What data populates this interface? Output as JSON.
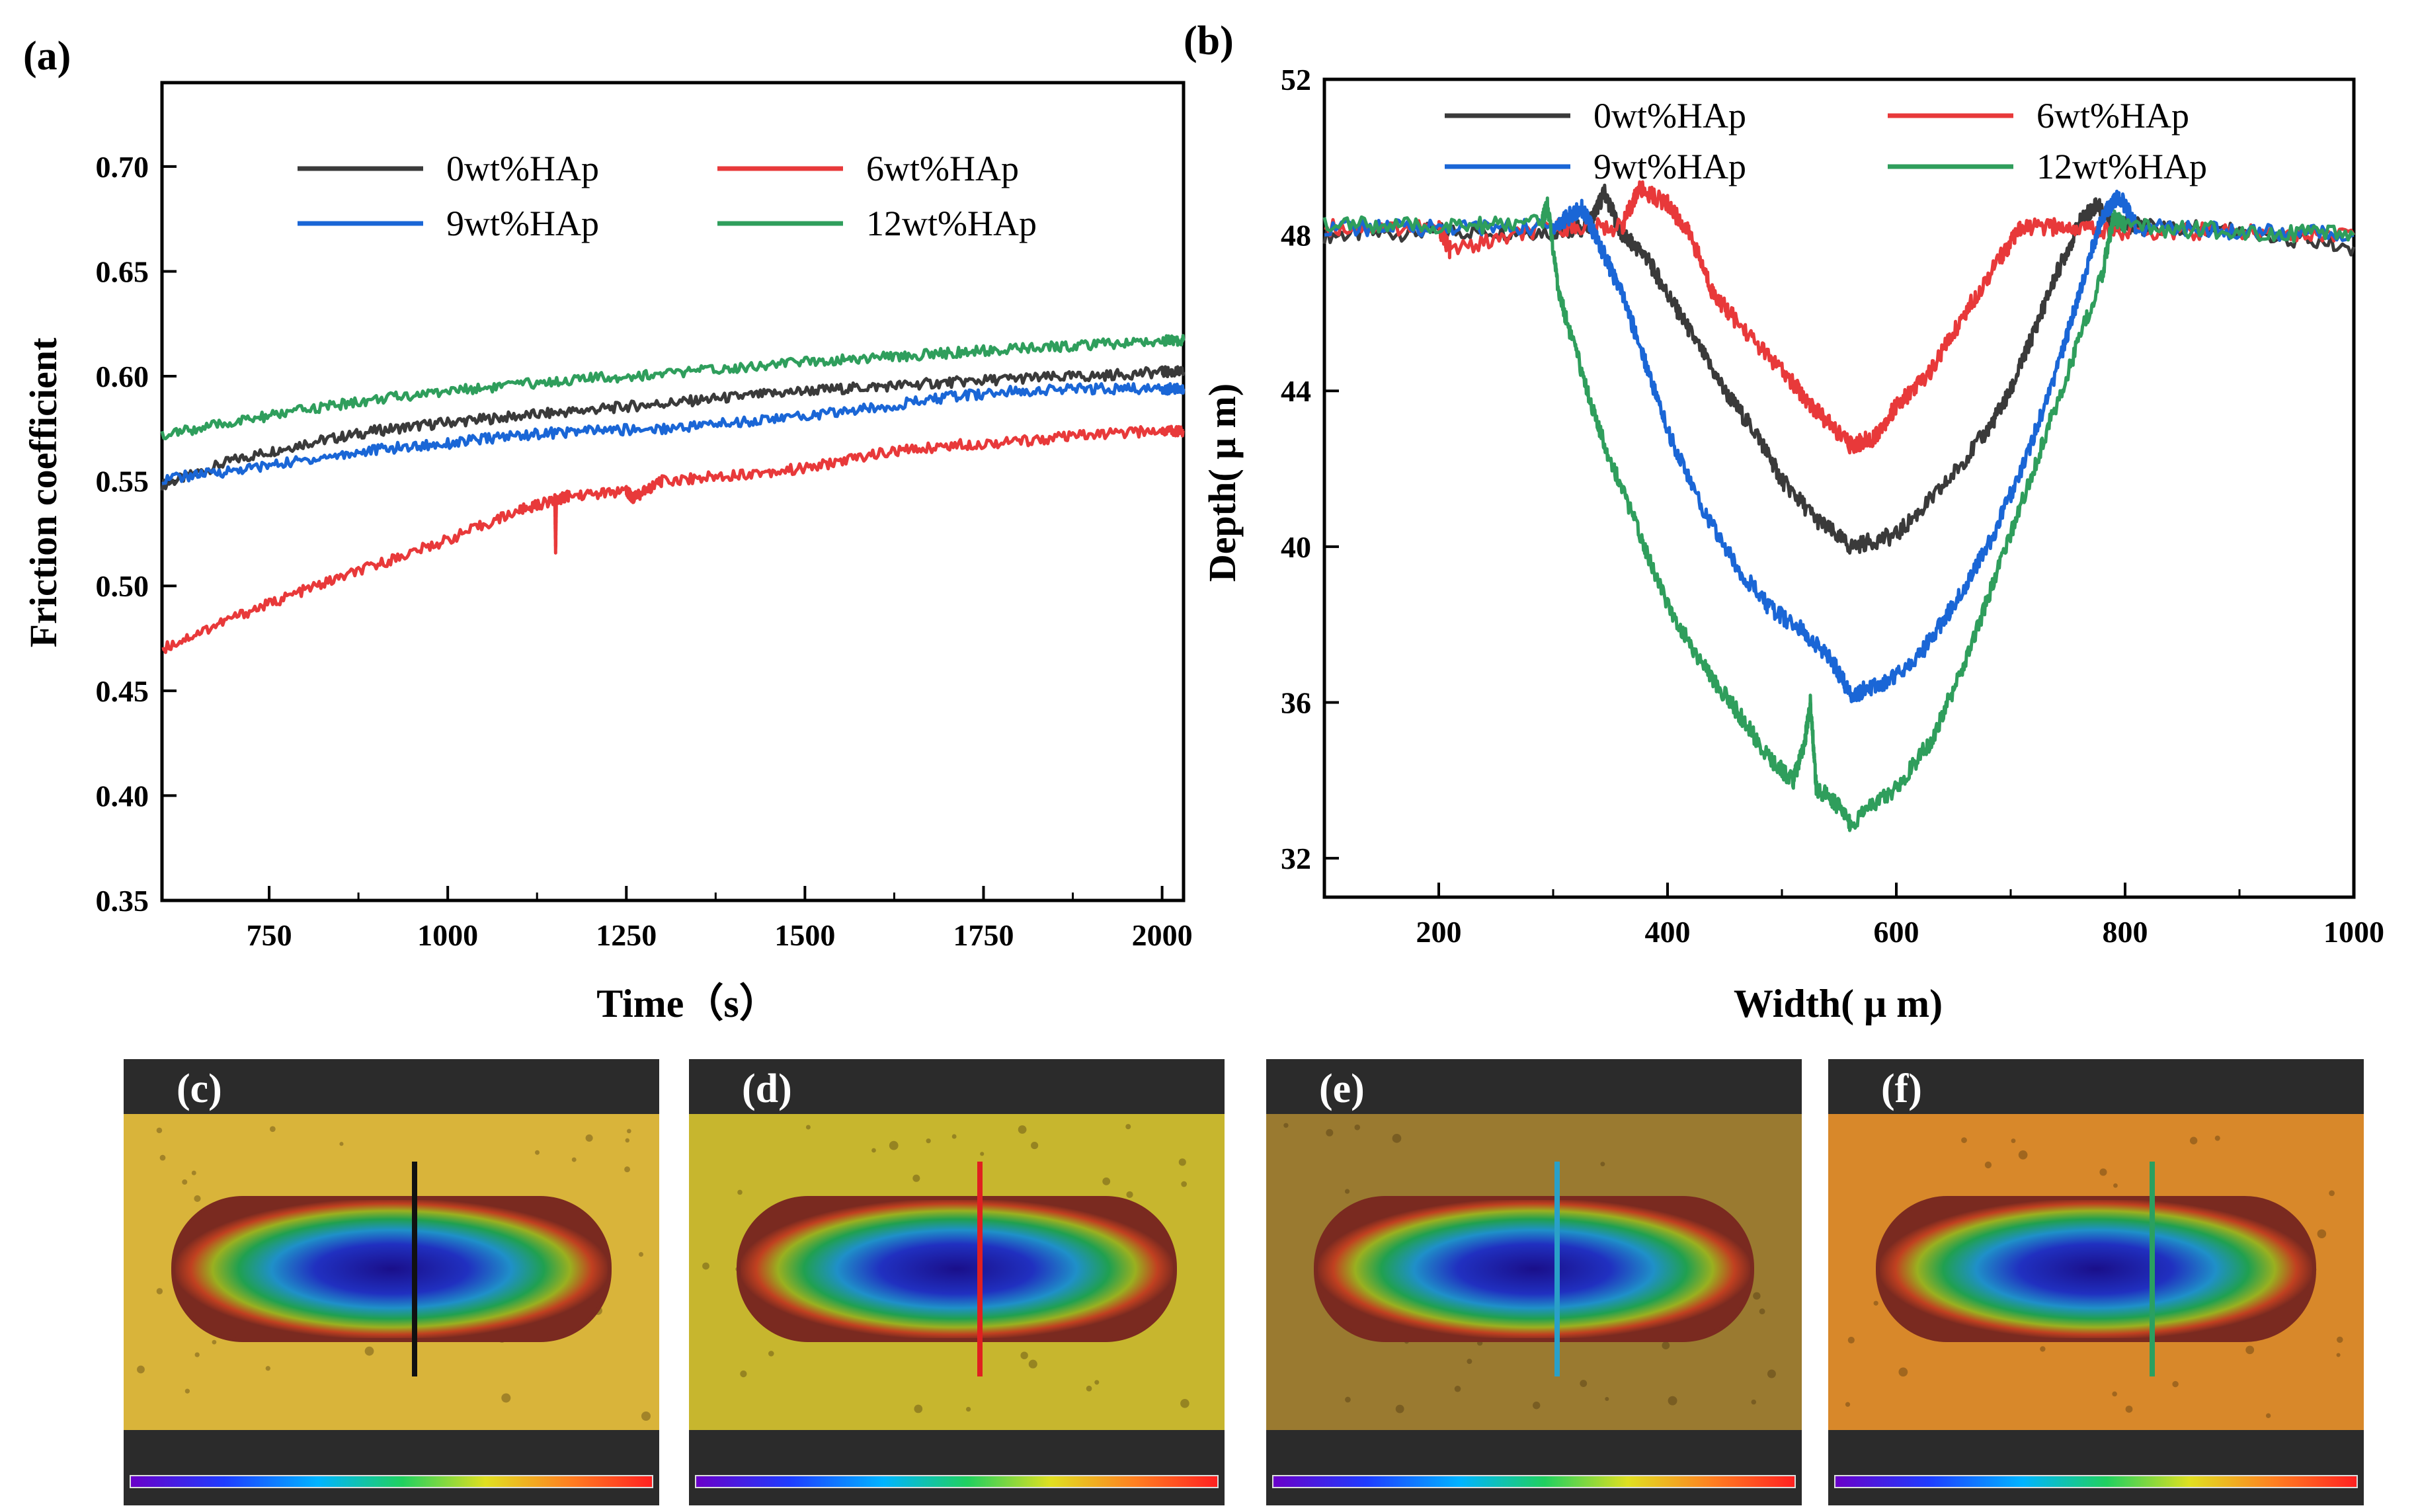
{
  "chart_data": [
    {
      "panel": "(a)",
      "type": "line",
      "title": "",
      "xlabel": "Time（s）",
      "ylabel": "Friction coefficient",
      "xlim": [
        600,
        2030
      ],
      "ylim": [
        0.35,
        0.74
      ],
      "xticks": [
        750,
        1000,
        1250,
        1500,
        1750,
        2000
      ],
      "yticks": [
        0.35,
        0.4,
        0.45,
        0.5,
        0.55,
        0.6,
        0.65,
        0.7
      ],
      "legend": "top-center",
      "series": [
        {
          "name": "0wt%HAp",
          "color": "#3a3a3a",
          "x": [
            600,
            700,
            800,
            900,
            1000,
            1100,
            1200,
            1300,
            1400,
            1500,
            1600,
            1700,
            1800,
            1900,
            2000,
            2030
          ],
          "y": [
            0.548,
            0.56,
            0.568,
            0.574,
            0.578,
            0.581,
            0.584,
            0.587,
            0.59,
            0.593,
            0.595,
            0.597,
            0.599,
            0.6,
            0.602,
            0.602
          ]
        },
        {
          "name": "6wt%HAp",
          "color": "#e8393a",
          "x": [
            600,
            700,
            800,
            900,
            1000,
            1100,
            1150,
            1151,
            1152,
            1170,
            1250,
            1260,
            1300,
            1400,
            1500,
            1600,
            1700,
            1800,
            1900,
            2000,
            2030
          ],
          "y": [
            0.47,
            0.485,
            0.498,
            0.51,
            0.522,
            0.536,
            0.541,
            0.516,
            0.541,
            0.543,
            0.545,
            0.542,
            0.55,
            0.553,
            0.556,
            0.563,
            0.567,
            0.569,
            0.572,
            0.574,
            0.574
          ]
        },
        {
          "name": "9wt%HAp",
          "color": "#1a66d6",
          "x": [
            600,
            700,
            800,
            900,
            1000,
            1100,
            1200,
            1300,
            1400,
            1500,
            1600,
            1700,
            1800,
            1900,
            2000,
            2030
          ],
          "y": [
            0.551,
            0.555,
            0.56,
            0.565,
            0.568,
            0.572,
            0.574,
            0.575,
            0.578,
            0.581,
            0.585,
            0.59,
            0.593,
            0.594,
            0.594,
            0.594
          ]
        },
        {
          "name": "12wt%HAp",
          "color": "#2f9e5c",
          "x": [
            600,
            700,
            800,
            900,
            1000,
            1100,
            1200,
            1300,
            1400,
            1500,
            1600,
            1700,
            1800,
            1900,
            2000,
            2030
          ],
          "y": [
            0.572,
            0.578,
            0.584,
            0.589,
            0.593,
            0.596,
            0.599,
            0.601,
            0.604,
            0.607,
            0.609,
            0.611,
            0.613,
            0.615,
            0.617,
            0.617
          ]
        }
      ],
      "legend_labels": [
        "0wt%HAp",
        "6wt%HAp",
        "9wt%HAp",
        "12wt%HAp"
      ]
    },
    {
      "panel": "(b)",
      "type": "line",
      "title": "",
      "xlabel": "Width( μ m)",
      "ylabel": "Depth( μ m)",
      "xlim": [
        100,
        1000
      ],
      "ylim": [
        31,
        52
      ],
      "xticks": [
        200,
        400,
        600,
        800,
        1000
      ],
      "yticks": [
        32,
        36,
        40,
        44,
        48,
        52
      ],
      "legend": "top",
      "series": [
        {
          "name": "0wt%HAp",
          "color": "#3a3a3a",
          "x": [
            100,
            200,
            300,
            330,
            345,
            360,
            380,
            400,
            420,
            450,
            480,
            500,
            530,
            560,
            600,
            640,
            680,
            700,
            720,
            740,
            760,
            775,
            790,
            820,
            900,
            1000
          ],
          "y": [
            48.0,
            48.1,
            48.1,
            48.2,
            49.1,
            48.0,
            47.5,
            46.5,
            45.5,
            44.0,
            42.8,
            41.7,
            40.7,
            40.0,
            40.3,
            41.5,
            43.0,
            44.0,
            45.5,
            47.0,
            48.3,
            48.8,
            48.3,
            48.2,
            48.1,
            47.7
          ]
        },
        {
          "name": "6wt%HAp",
          "color": "#e8393a",
          "x": [
            100,
            200,
            210,
            300,
            360,
            375,
            400,
            420,
            440,
            460,
            500,
            530,
            560,
            580,
            600,
            630,
            660,
            690,
            710,
            750,
            800,
            900,
            1000
          ],
          "y": [
            48.2,
            48.2,
            47.6,
            48.2,
            48.2,
            49.2,
            48.8,
            48.0,
            46.5,
            45.8,
            44.5,
            43.5,
            42.6,
            42.8,
            43.6,
            44.5,
            46.0,
            47.4,
            48.2,
            48.2,
            48.1,
            48.1,
            48.0
          ]
        },
        {
          "name": "9wt%HAp",
          "color": "#1a66d6",
          "x": [
            100,
            200,
            300,
            310,
            325,
            340,
            360,
            380,
            400,
            430,
            460,
            490,
            520,
            545,
            560,
            590,
            620,
            650,
            680,
            710,
            740,
            760,
            780,
            795,
            810,
            900,
            1000
          ],
          "y": [
            48.2,
            48.2,
            48.2,
            48.4,
            48.7,
            47.8,
            46.5,
            44.8,
            43.0,
            41.0,
            39.5,
            38.4,
            37.8,
            37.0,
            36.2,
            36.5,
            37.2,
            38.5,
            40.0,
            42.0,
            44.5,
            46.5,
            48.5,
            49.0,
            48.2,
            48.1,
            48.0
          ]
        },
        {
          "name": "12wt%HAp",
          "color": "#2f9e5c",
          "x": [
            100,
            200,
            290,
            295,
            305,
            320,
            340,
            360,
            380,
            400,
            430,
            460,
            490,
            510,
            520,
            525,
            530,
            545,
            560,
            600,
            630,
            660,
            690,
            720,
            750,
            780,
            790,
            800,
            900,
            1000
          ],
          "y": [
            48.3,
            48.2,
            48.3,
            48.8,
            46.5,
            45.0,
            43.0,
            41.5,
            40.0,
            38.5,
            37.0,
            35.8,
            34.5,
            34.0,
            35.0,
            36.0,
            33.8,
            33.5,
            32.9,
            33.8,
            35.0,
            37.0,
            39.5,
            42.0,
            44.5,
            47.0,
            48.5,
            48.2,
            48.1,
            48.0
          ]
        }
      ],
      "legend_labels": [
        "0wt%HAp",
        "6wt%HAp",
        "9wt%HAp",
        "12wt%HAp"
      ]
    }
  ],
  "images": [
    {
      "panel": "(c)",
      "background": "#d9b43a",
      "line_color": "#111111"
    },
    {
      "panel": "(d)",
      "background": "#c7b62e",
      "line_color": "#e02020"
    },
    {
      "panel": "(e)",
      "background": "#9a7a30",
      "line_color": "#2aa0c8"
    },
    {
      "panel": "(f)",
      "background": "#d8882a",
      "line_color": "#2aa060"
    }
  ]
}
